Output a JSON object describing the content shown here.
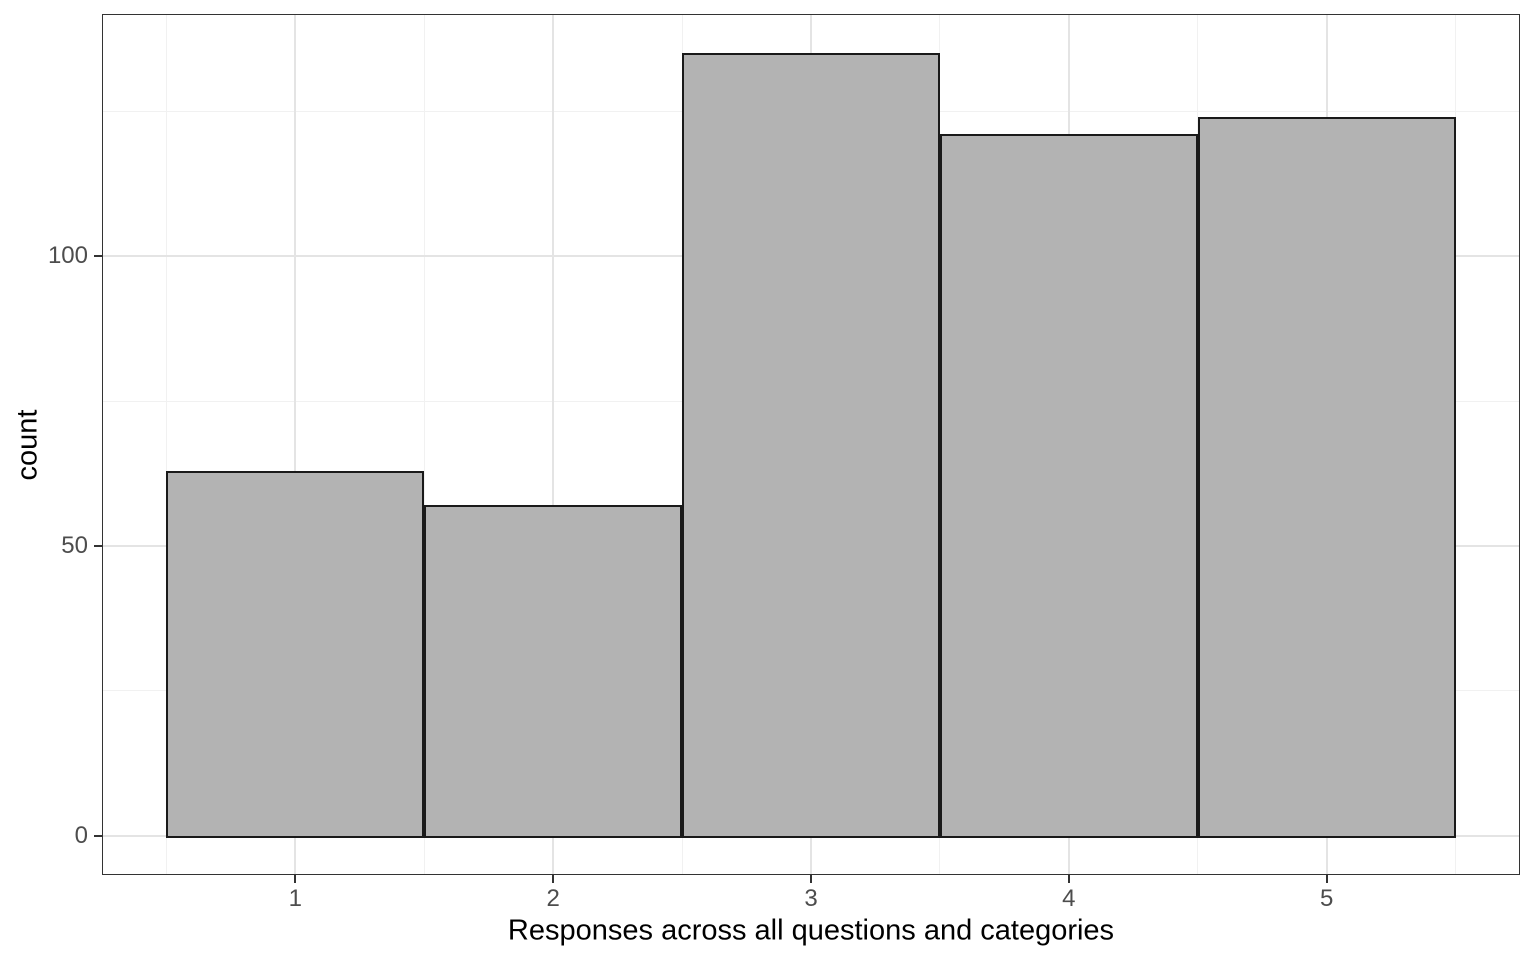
{
  "chart_data": {
    "type": "bar",
    "subtype": "histogram",
    "title": "",
    "xlabel": "Responses across all questions and categories",
    "ylabel": "count",
    "categories": [
      1,
      2,
      3,
      4,
      5
    ],
    "values": [
      63,
      57,
      135,
      121,
      124
    ],
    "bar_width": 1,
    "x_ticks": [
      1,
      2,
      3,
      4,
      5
    ],
    "x_tick_labels": [
      "1",
      "2",
      "3",
      "4",
      "5"
    ],
    "y_ticks": [
      0,
      50,
      100
    ],
    "y_tick_labels": [
      "0",
      "50",
      "100"
    ],
    "x_minor_gridlines": [
      0.5,
      1.5,
      2.5,
      3.5,
      4.5,
      5.5
    ],
    "y_minor_gridlines": [
      25,
      75,
      125
    ],
    "xlim": [
      0.25,
      5.75
    ],
    "ylim": [
      -6.75,
      141.75
    ],
    "grid": "major+minor",
    "legend": "none",
    "colors": {
      "bar_fill": "#b3b3b3",
      "bar_stroke": "#1a1a1a",
      "grid_major": "#e4e4e4",
      "grid_minor": "#f1f1f1",
      "panel_border": "#333333",
      "tick_mark": "#333333",
      "tick_label": "#4d4d4d",
      "axis_title": "#000000",
      "panel_background": "#ffffff"
    }
  }
}
